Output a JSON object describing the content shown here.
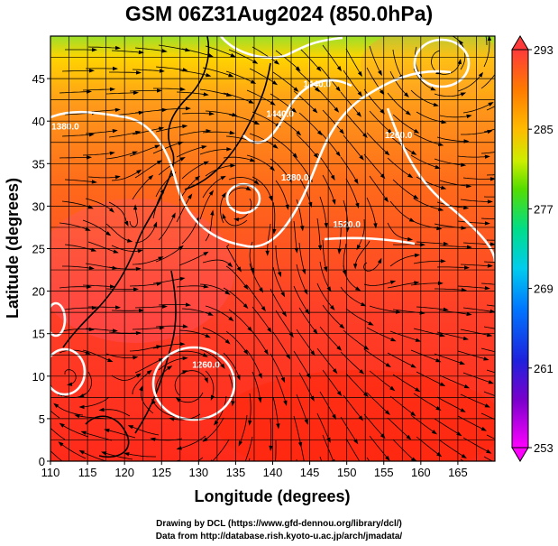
{
  "title": "GSM 06Z31Aug2024 (850.0hPa)",
  "credits": {
    "line1": "Drawing by DCL (https://www.gfd-dennou.org/library/dcl/)",
    "line2": "Data from http://database.rish.kyoto-u.ac.jp/arch/jmadata/"
  },
  "chart_data": {
    "type": "heatmap",
    "title": "GSM 06Z31Aug2024 (850.0hPa)",
    "xlabel": "Longitude (degrees)",
    "ylabel": "Latitude  (degrees)",
    "xlim": [
      110,
      170
    ],
    "ylim": [
      0,
      50
    ],
    "x_ticks": [
      110,
      115,
      120,
      125,
      130,
      135,
      140,
      145,
      150,
      155,
      160,
      165
    ],
    "y_ticks": [
      0,
      5,
      10,
      15,
      20,
      25,
      30,
      35,
      40,
      45
    ],
    "grid": true,
    "colorbar": {
      "min": 253,
      "max": 293,
      "ticks": [
        253,
        261,
        269,
        277,
        285,
        293
      ],
      "stops": [
        "#ff00ff",
        "#6600cc",
        "#1e22dd",
        "#0080ff",
        "#00d0ff",
        "#00e080",
        "#66dd00",
        "#ccee00",
        "#ffbb00",
        "#ff7a00",
        "#ff3a3a"
      ]
    },
    "contour_labels": [
      {
        "text": "1380.0",
        "lon": 112,
        "lat": 39
      },
      {
        "text": "1440.0",
        "lon": 141,
        "lat": 40.5
      },
      {
        "text": "1440.0",
        "lon": 146,
        "lat": 44
      },
      {
        "text": "1380.0",
        "lon": 143,
        "lat": 33
      },
      {
        "text": "1260.0",
        "lon": 157,
        "lat": 38
      },
      {
        "text": "1520.0",
        "lon": 150,
        "lat": 27.5
      },
      {
        "text": "1260.0",
        "lon": 131,
        "lat": 11
      }
    ]
  }
}
